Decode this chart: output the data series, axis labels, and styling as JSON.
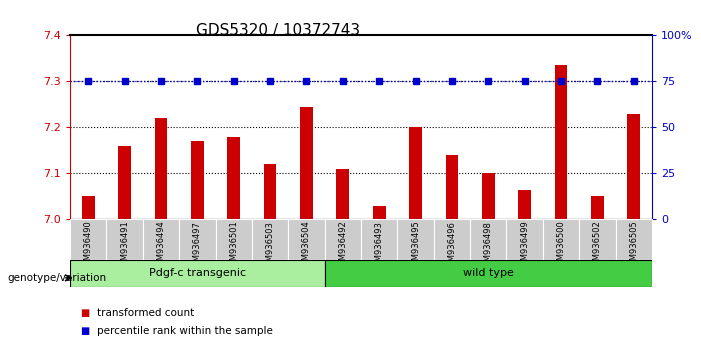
{
  "title": "GDS5320 / 10372743",
  "categories": [
    "GSM936490",
    "GSM936491",
    "GSM936494",
    "GSM936497",
    "GSM936501",
    "GSM936503",
    "GSM936504",
    "GSM936492",
    "GSM936493",
    "GSM936495",
    "GSM936496",
    "GSM936498",
    "GSM936499",
    "GSM936500",
    "GSM936502",
    "GSM936505"
  ],
  "red_values": [
    7.05,
    7.16,
    7.22,
    7.17,
    7.18,
    7.12,
    7.245,
    7.11,
    7.03,
    7.2,
    7.14,
    7.1,
    7.065,
    7.335,
    7.05,
    7.23
  ],
  "blue_values": [
    75,
    75,
    75,
    75,
    75,
    75,
    75,
    75,
    75,
    75,
    75,
    75,
    75,
    75,
    75,
    75
  ],
  "ylim_left": [
    7.0,
    7.4
  ],
  "ylim_right": [
    0,
    100
  ],
  "yticks_left": [
    7.0,
    7.1,
    7.2,
    7.3,
    7.4
  ],
  "yticks_right": [
    0,
    25,
    50,
    75,
    100
  ],
  "ytick_labels_right": [
    "0",
    "25",
    "50",
    "75",
    "100%"
  ],
  "group1_label": "Pdgf-c transgenic",
  "group2_label": "wild type",
  "group1_count": 7,
  "group2_count": 9,
  "genotype_label": "genotype/variation",
  "legend_red": "transformed count",
  "legend_blue": "percentile rank within the sample",
  "bar_color": "#cc0000",
  "blue_color": "#0000cc",
  "group1_bg": "#aaeea0",
  "group2_bg": "#44cc44",
  "xticklabel_bg": "#cccccc",
  "title_fontsize": 11,
  "tick_fontsize": 8,
  "label_fontsize": 8
}
